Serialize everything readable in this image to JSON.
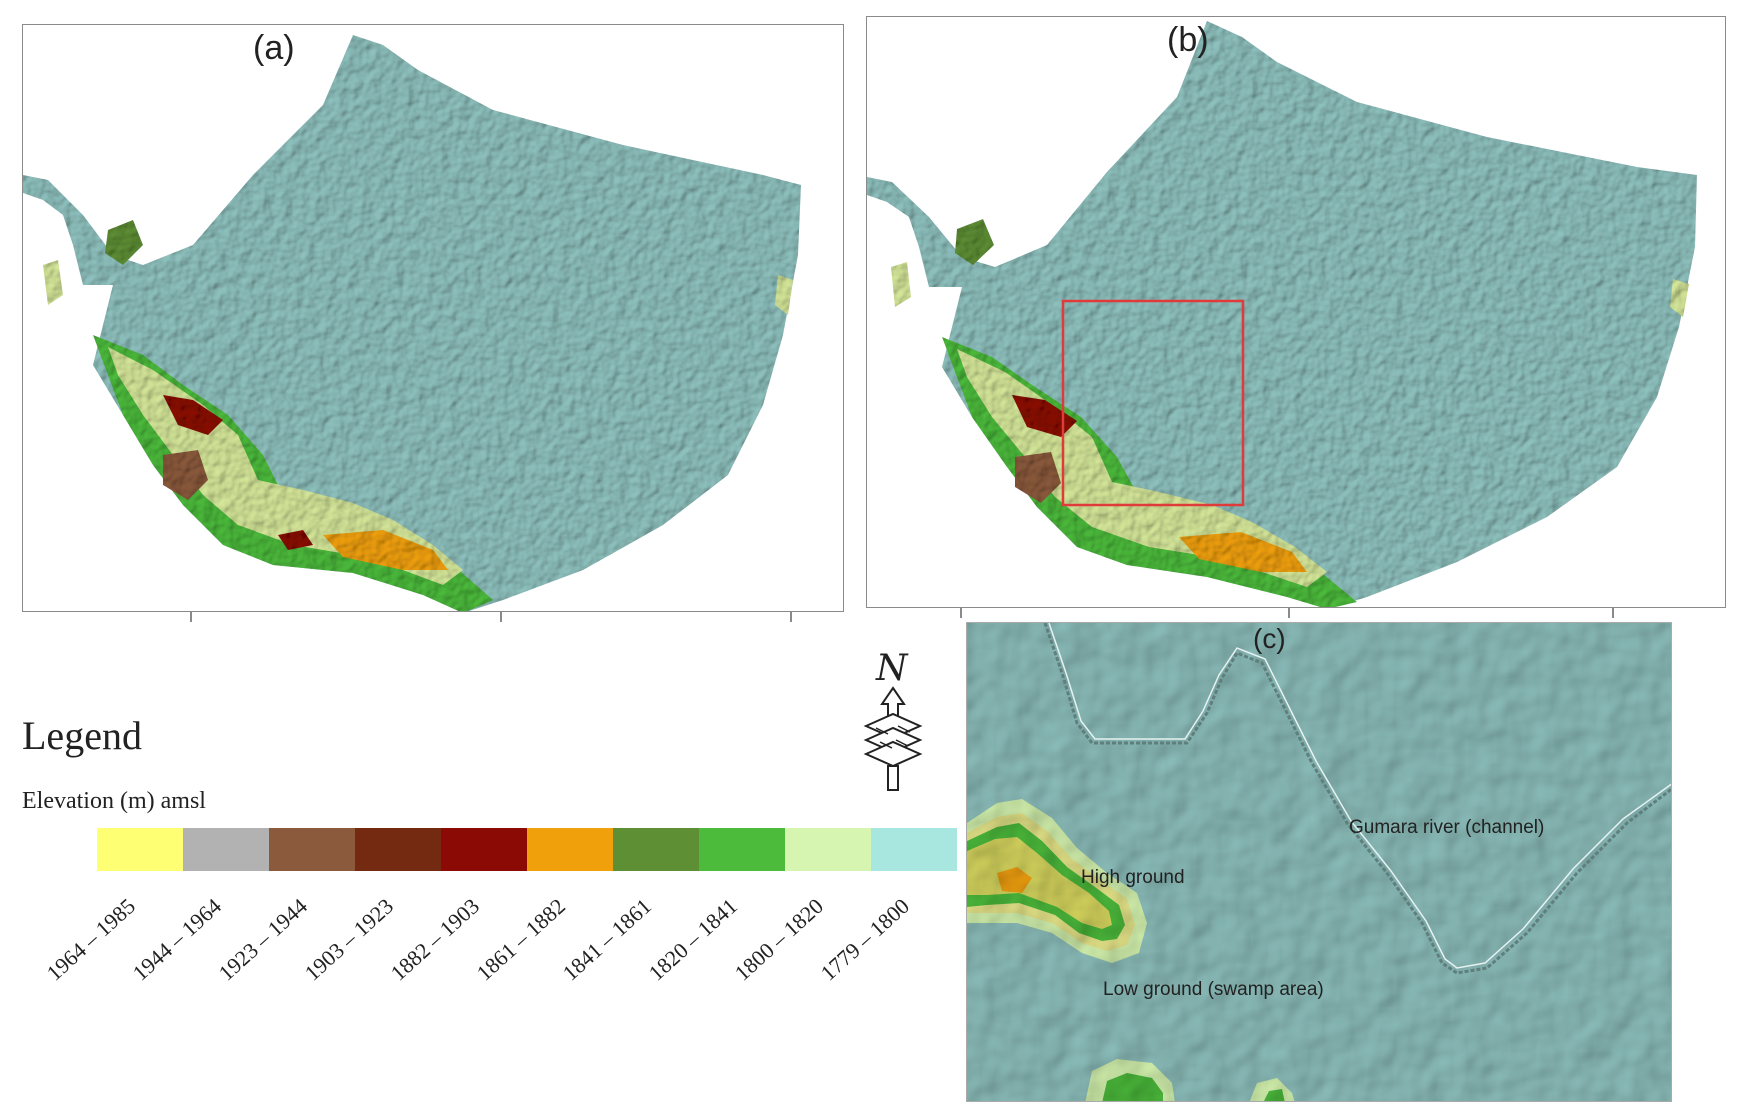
{
  "panels": {
    "a": {
      "label": "(a)"
    },
    "b": {
      "label": "(b)"
    },
    "c": {
      "label": "(c)"
    }
  },
  "annotations": {
    "high_ground": "High ground",
    "river": "Gumara river (channel)",
    "low_ground": "Low ground (swamp area)"
  },
  "north_arrow": {
    "label": "N",
    "icon": "north-arrow-icon"
  },
  "legend": {
    "title": "Legend",
    "subtitle": "Elevation (m) amsl",
    "classes": [
      {
        "range": "1964 – 1985",
        "color": "#ffff73"
      },
      {
        "range": "1944 – 1964",
        "color": "#b2b2b2"
      },
      {
        "range": "1923 – 1944",
        "color": "#8b5a3c"
      },
      {
        "range": "1903 – 1923",
        "color": "#732a10"
      },
      {
        "range": "1882 – 1903",
        "color": "#8b0a06"
      },
      {
        "range": "1861 – 1882",
        "color": "#f0a00a"
      },
      {
        "range": "1841 – 1861",
        "color": "#5e8f35"
      },
      {
        "range": "1820 – 1841",
        "color": "#4cbb3c"
      },
      {
        "range": "1800 – 1820",
        "color": "#d6f5b0"
      },
      {
        "range": "1779 – 1800",
        "color": "#a8e6e0"
      }
    ]
  },
  "colors": {
    "lake_plain": "#8fc2bf",
    "highlight_box": "#e03a3a",
    "panel_border": "#8a8a8a"
  }
}
